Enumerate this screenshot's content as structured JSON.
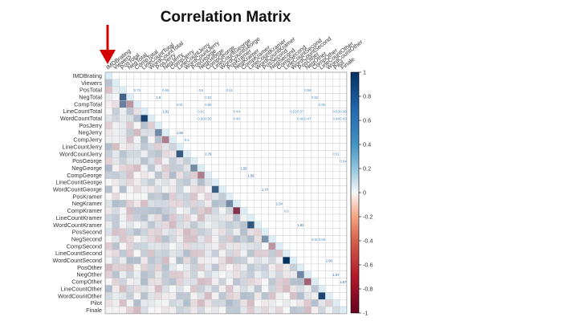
{
  "chart_data": {
    "type": "heatmap",
    "title": "Correlation Matrix",
    "xlabel": "",
    "ylabel": "",
    "variables": [
      "IMDBrating",
      "Viewers",
      "PosTotal",
      "NegTotal",
      "CompTotal",
      "LineCountTotal",
      "WordCountTotal",
      "PosJerry",
      "NegJerry",
      "CompJerry",
      "LineCountJerry",
      "WordCountJerry",
      "PosGeorge",
      "NegGeorge",
      "CompGeorge",
      "LineCountGeorge",
      "WordCountGeorge",
      "PosKramer",
      "NegKramer",
      "CompKramer",
      "LineCountKramer",
      "WordCountKramer",
      "PosSecond",
      "NegSecond",
      "CompSecond",
      "LineCountSecond",
      "WordCountSecond",
      "PosOther",
      "NegOther",
      "CompOther",
      "LineCountOther",
      "WordCountOther",
      "Pilot",
      "Finale"
    ],
    "column_labels": [
      "IMDBrating",
      "Viewers",
      "PosTotal",
      "NegTotal",
      "CompTotal",
      "LineCountTotal",
      "WordCountTotal",
      "PosJerry",
      "NegJerry",
      "CompJerry",
      "LineCountJerry",
      "WordCountJerry",
      "PosGeorge",
      "NegGeorge",
      "CompGeorge",
      "LineCountGeorge",
      "WordCountGeorge",
      "PosKramer",
      "NegKramer",
      "CompKramer",
      "LineCountKramer",
      "WordCountKramer",
      "PosSecond",
      "NegSecond",
      "CompSecond",
      "LineCountSecond",
      "WordCountSecond",
      "PosOther",
      "NegOther",
      "CompOther",
      "LineCountOther",
      "WordCountOther",
      "Pilot",
      "Finale"
    ],
    "legend": {
      "position": "right",
      "ticks": [
        "1",
        "0.8",
        "0.6",
        "0.4",
        "0.2",
        "0",
        "-0.2",
        "-0.4",
        "-0.6",
        "-0.8",
        "-1"
      ],
      "min": -1,
      "max": 1,
      "colors": {
        "neg": "#67001f",
        "mid": "#f7f7f7",
        "pos": "#053061"
      }
    },
    "strong_pairs": [
      {
        "row": 3,
        "col": 2,
        "value": 0.75
      },
      {
        "row": 4,
        "col": 2,
        "value": 0.6
      },
      {
        "row": 4,
        "col": 3,
        "value": -0.4
      },
      {
        "row": 6,
        "col": 5,
        "value": 0.91
      },
      {
        "row": 8,
        "col": 7,
        "value": 0.55
      },
      {
        "row": 9,
        "col": 8,
        "value": -0.5
      },
      {
        "row": 11,
        "col": 10,
        "value": 0.79
      },
      {
        "row": 13,
        "col": 12,
        "value": 0.55
      },
      {
        "row": 14,
        "col": 13,
        "value": -0.5
      },
      {
        "row": 16,
        "col": 15,
        "value": 0.77
      },
      {
        "row": 18,
        "col": 17,
        "value": 0.54
      },
      {
        "row": 19,
        "col": 18,
        "value": -0.8
      },
      {
        "row": 21,
        "col": 20,
        "value": 0.82
      },
      {
        "row": 23,
        "col": 22,
        "value": 0.51
      },
      {
        "row": 24,
        "col": 23,
        "value": -0.4
      },
      {
        "row": 26,
        "col": 25,
        "value": 1.0
      },
      {
        "row": 28,
        "col": 27,
        "value": 0.57
      },
      {
        "row": 29,
        "col": 28,
        "value": -0.6
      },
      {
        "row": 31,
        "col": 30,
        "value": 0.9
      }
    ],
    "annotations": [
      {
        "row": 2,
        "col": 4,
        "text": "0.75"
      },
      {
        "row": 2,
        "col": 8,
        "text": "0.65"
      },
      {
        "row": 2,
        "col": 13,
        "text": "0.6"
      },
      {
        "row": 2,
        "col": 17,
        "text": "0.61"
      },
      {
        "row": 2,
        "col": 28,
        "text": "0.59"
      },
      {
        "row": 3,
        "col": 7,
        "text": "1.9"
      },
      {
        "row": 3,
        "col": 14,
        "text": "0.52"
      },
      {
        "row": 3,
        "col": 29,
        "text": "0.52"
      },
      {
        "row": 4,
        "col": 10,
        "text": "0.61"
      },
      {
        "row": 4,
        "col": 14,
        "text": "0.65"
      },
      {
        "row": 4,
        "col": 30,
        "text": "0.55"
      },
      {
        "row": 5,
        "col": 8,
        "text": "1.91"
      },
      {
        "row": 5,
        "col": 13,
        "text": "0.91"
      },
      {
        "row": 5,
        "col": 18,
        "text": "0.44"
      },
      {
        "row": 5,
        "col": 26,
        "text": "0.52"
      },
      {
        "row": 5,
        "col": 27,
        "text": "0.57"
      },
      {
        "row": 5,
        "col": 32,
        "text": "0.53"
      },
      {
        "row": 5,
        "col": 33,
        "text": "0.48"
      },
      {
        "row": 6,
        "col": 13,
        "text": "0.95"
      },
      {
        "row": 6,
        "col": 14,
        "text": "0.55"
      },
      {
        "row": 6,
        "col": 18,
        "text": "0.46"
      },
      {
        "row": 6,
        "col": 27,
        "text": "0.46"
      },
      {
        "row": 6,
        "col": 28,
        "text": "0.47"
      },
      {
        "row": 6,
        "col": 32,
        "text": "0.44"
      },
      {
        "row": 6,
        "col": 33,
        "text": "0.43"
      },
      {
        "row": 8,
        "col": 10,
        "text": "1.55"
      },
      {
        "row": 9,
        "col": 11,
        "text": "0.5"
      },
      {
        "row": 11,
        "col": 14,
        "text": "1.79"
      },
      {
        "row": 11,
        "col": 32,
        "text": "0.51"
      },
      {
        "row": 12,
        "col": 33,
        "text": "0.64"
      },
      {
        "row": 13,
        "col": 19,
        "text": "1.55"
      },
      {
        "row": 14,
        "col": 20,
        "text": "1.56"
      },
      {
        "row": 16,
        "col": 22,
        "text": "1.77"
      },
      {
        "row": 18,
        "col": 24,
        "text": "1.54"
      },
      {
        "row": 19,
        "col": 25,
        "text": "0.8"
      },
      {
        "row": 21,
        "col": 27,
        "text": "1.82"
      },
      {
        "row": 23,
        "col": 29,
        "text": "0.51"
      },
      {
        "row": 23,
        "col": 30,
        "text": "0.58"
      },
      {
        "row": 26,
        "col": 31,
        "text": "1.00"
      },
      {
        "row": 28,
        "col": 32,
        "text": "1.57"
      },
      {
        "row": 29,
        "col": 33,
        "text": "1.57"
      },
      {
        "row": 31,
        "col": 34,
        "text": "0.9"
      },
      {
        "row": 31,
        "col": 35,
        "text": "0.52"
      },
      {
        "row": 32,
        "col": 35,
        "text": "0.59"
      }
    ]
  }
}
